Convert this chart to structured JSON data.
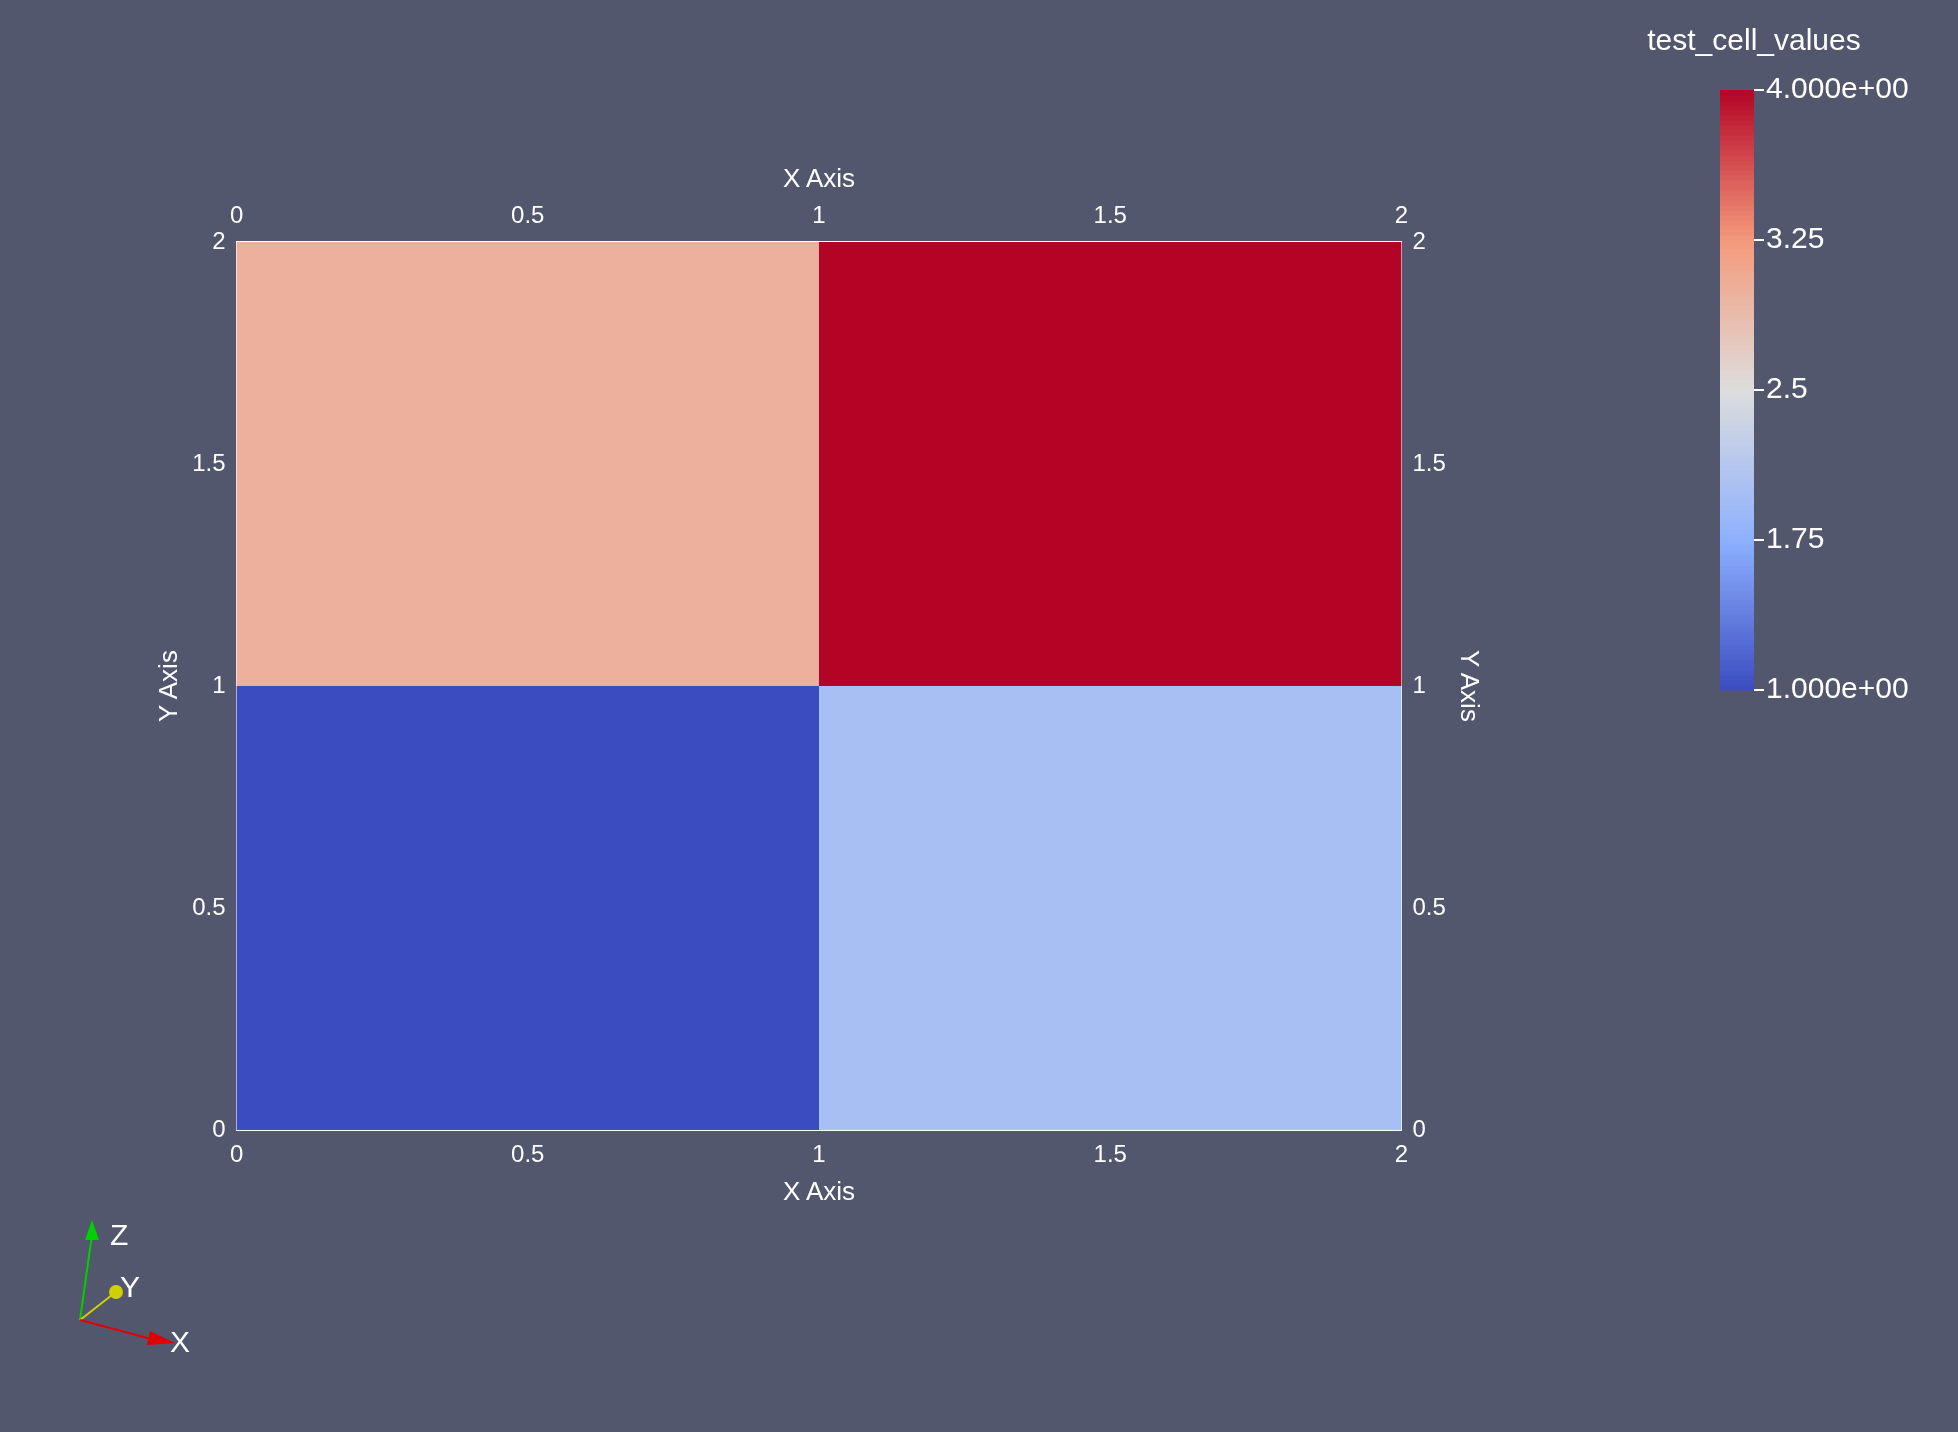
{
  "chart_data": {
    "type": "heatmap",
    "xlabel": "X Axis",
    "ylabel": "Y Axis",
    "x2label": "X Axis",
    "y2label": "Y Axis",
    "clabel": "test_cell_values",
    "cells": [
      [
        3,
        4
      ],
      [
        1,
        2
      ]
    ],
    "xlim": [
      0,
      2
    ],
    "xticks": [
      0,
      0.5,
      1,
      1.5,
      2
    ],
    "ylim": [
      0,
      2
    ],
    "yticks": [
      0,
      0.5,
      1,
      1.5,
      2
    ],
    "x2lim": [
      0,
      2
    ],
    "x2ticks": [
      0,
      0.5,
      1,
      1.5,
      2
    ],
    "y2lim": [
      0,
      2
    ],
    "y2ticks": [
      0,
      0.5,
      1,
      1.5,
      2
    ],
    "clim": [
      1,
      4
    ],
    "cticks": [
      {
        "value": 1,
        "label": "1.000e+00"
      },
      1.75,
      2.5,
      3.25,
      {
        "value": 4,
        "label": "4.000e+00"
      }
    ],
    "annotations": [
      "X",
      "Y",
      "Z"
    ]
  }
}
